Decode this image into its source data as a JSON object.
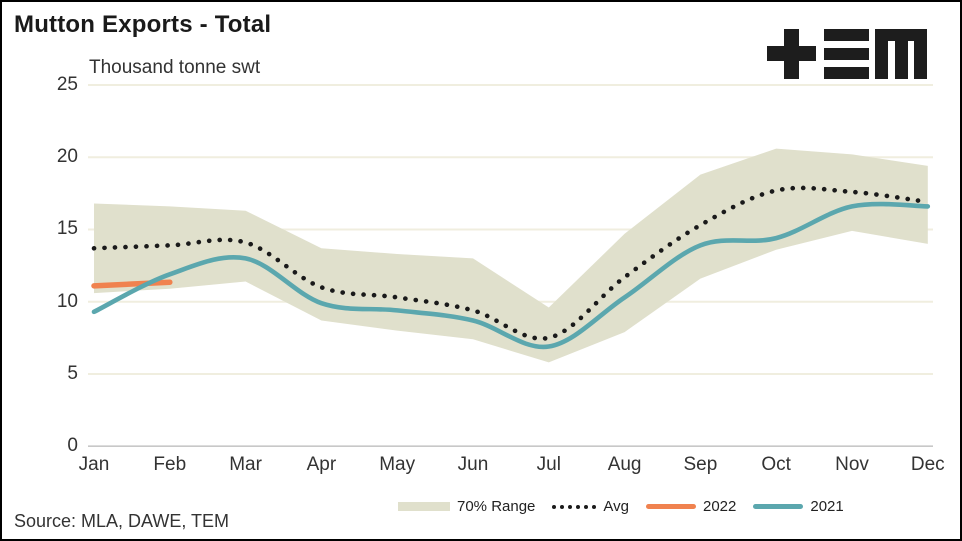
{
  "header": {
    "title": "Mutton Exports - Total",
    "logo": "TEM"
  },
  "footer": {
    "source": "Source: MLA, DAWE, TEM"
  },
  "chart_data": {
    "type": "line",
    "title": "Mutton Exports - Total",
    "ylabel": "Thousand tonne swt",
    "ylim": [
      0,
      25
    ],
    "yticks": [
      0,
      5,
      10,
      15,
      20,
      25
    ],
    "grid": "horizontal",
    "legend_position": "bottom",
    "categories": [
      "Jan",
      "Feb",
      "Mar",
      "Apr",
      "May",
      "Jun",
      "Jul",
      "Aug",
      "Sep",
      "Oct",
      "Nov",
      "Dec"
    ],
    "series": [
      {
        "name": "70% Range",
        "type": "band",
        "color": "#E0E0CC",
        "upper": [
          16.8,
          16.6,
          16.3,
          13.7,
          13.3,
          13.0,
          9.6,
          14.7,
          18.8,
          20.6,
          20.2,
          19.4
        ],
        "lower": [
          10.6,
          10.9,
          11.4,
          8.7,
          8.0,
          7.4,
          5.8,
          7.9,
          11.6,
          13.6,
          14.9,
          14.0
        ]
      },
      {
        "name": "Avg",
        "type": "dotted-line",
        "color": "#1A1A1A",
        "values": [
          13.7,
          13.9,
          14.1,
          11.0,
          10.3,
          9.4,
          7.5,
          11.7,
          15.3,
          17.7,
          17.6,
          16.9
        ]
      },
      {
        "name": "2022",
        "type": "line",
        "color": "#F0824F",
        "values": [
          11.1,
          11.35
        ]
      },
      {
        "name": "2021",
        "type": "line",
        "color": "#5BA7AE",
        "values": [
          9.3,
          11.9,
          13.0,
          9.9,
          9.4,
          8.7,
          6.9,
          10.3,
          13.9,
          14.4,
          16.6,
          16.6
        ]
      }
    ],
    "colors": {
      "grid_light": "#F0EEDF",
      "grid_zero": "#C8C8C8",
      "background": "#FFFFFF"
    }
  }
}
